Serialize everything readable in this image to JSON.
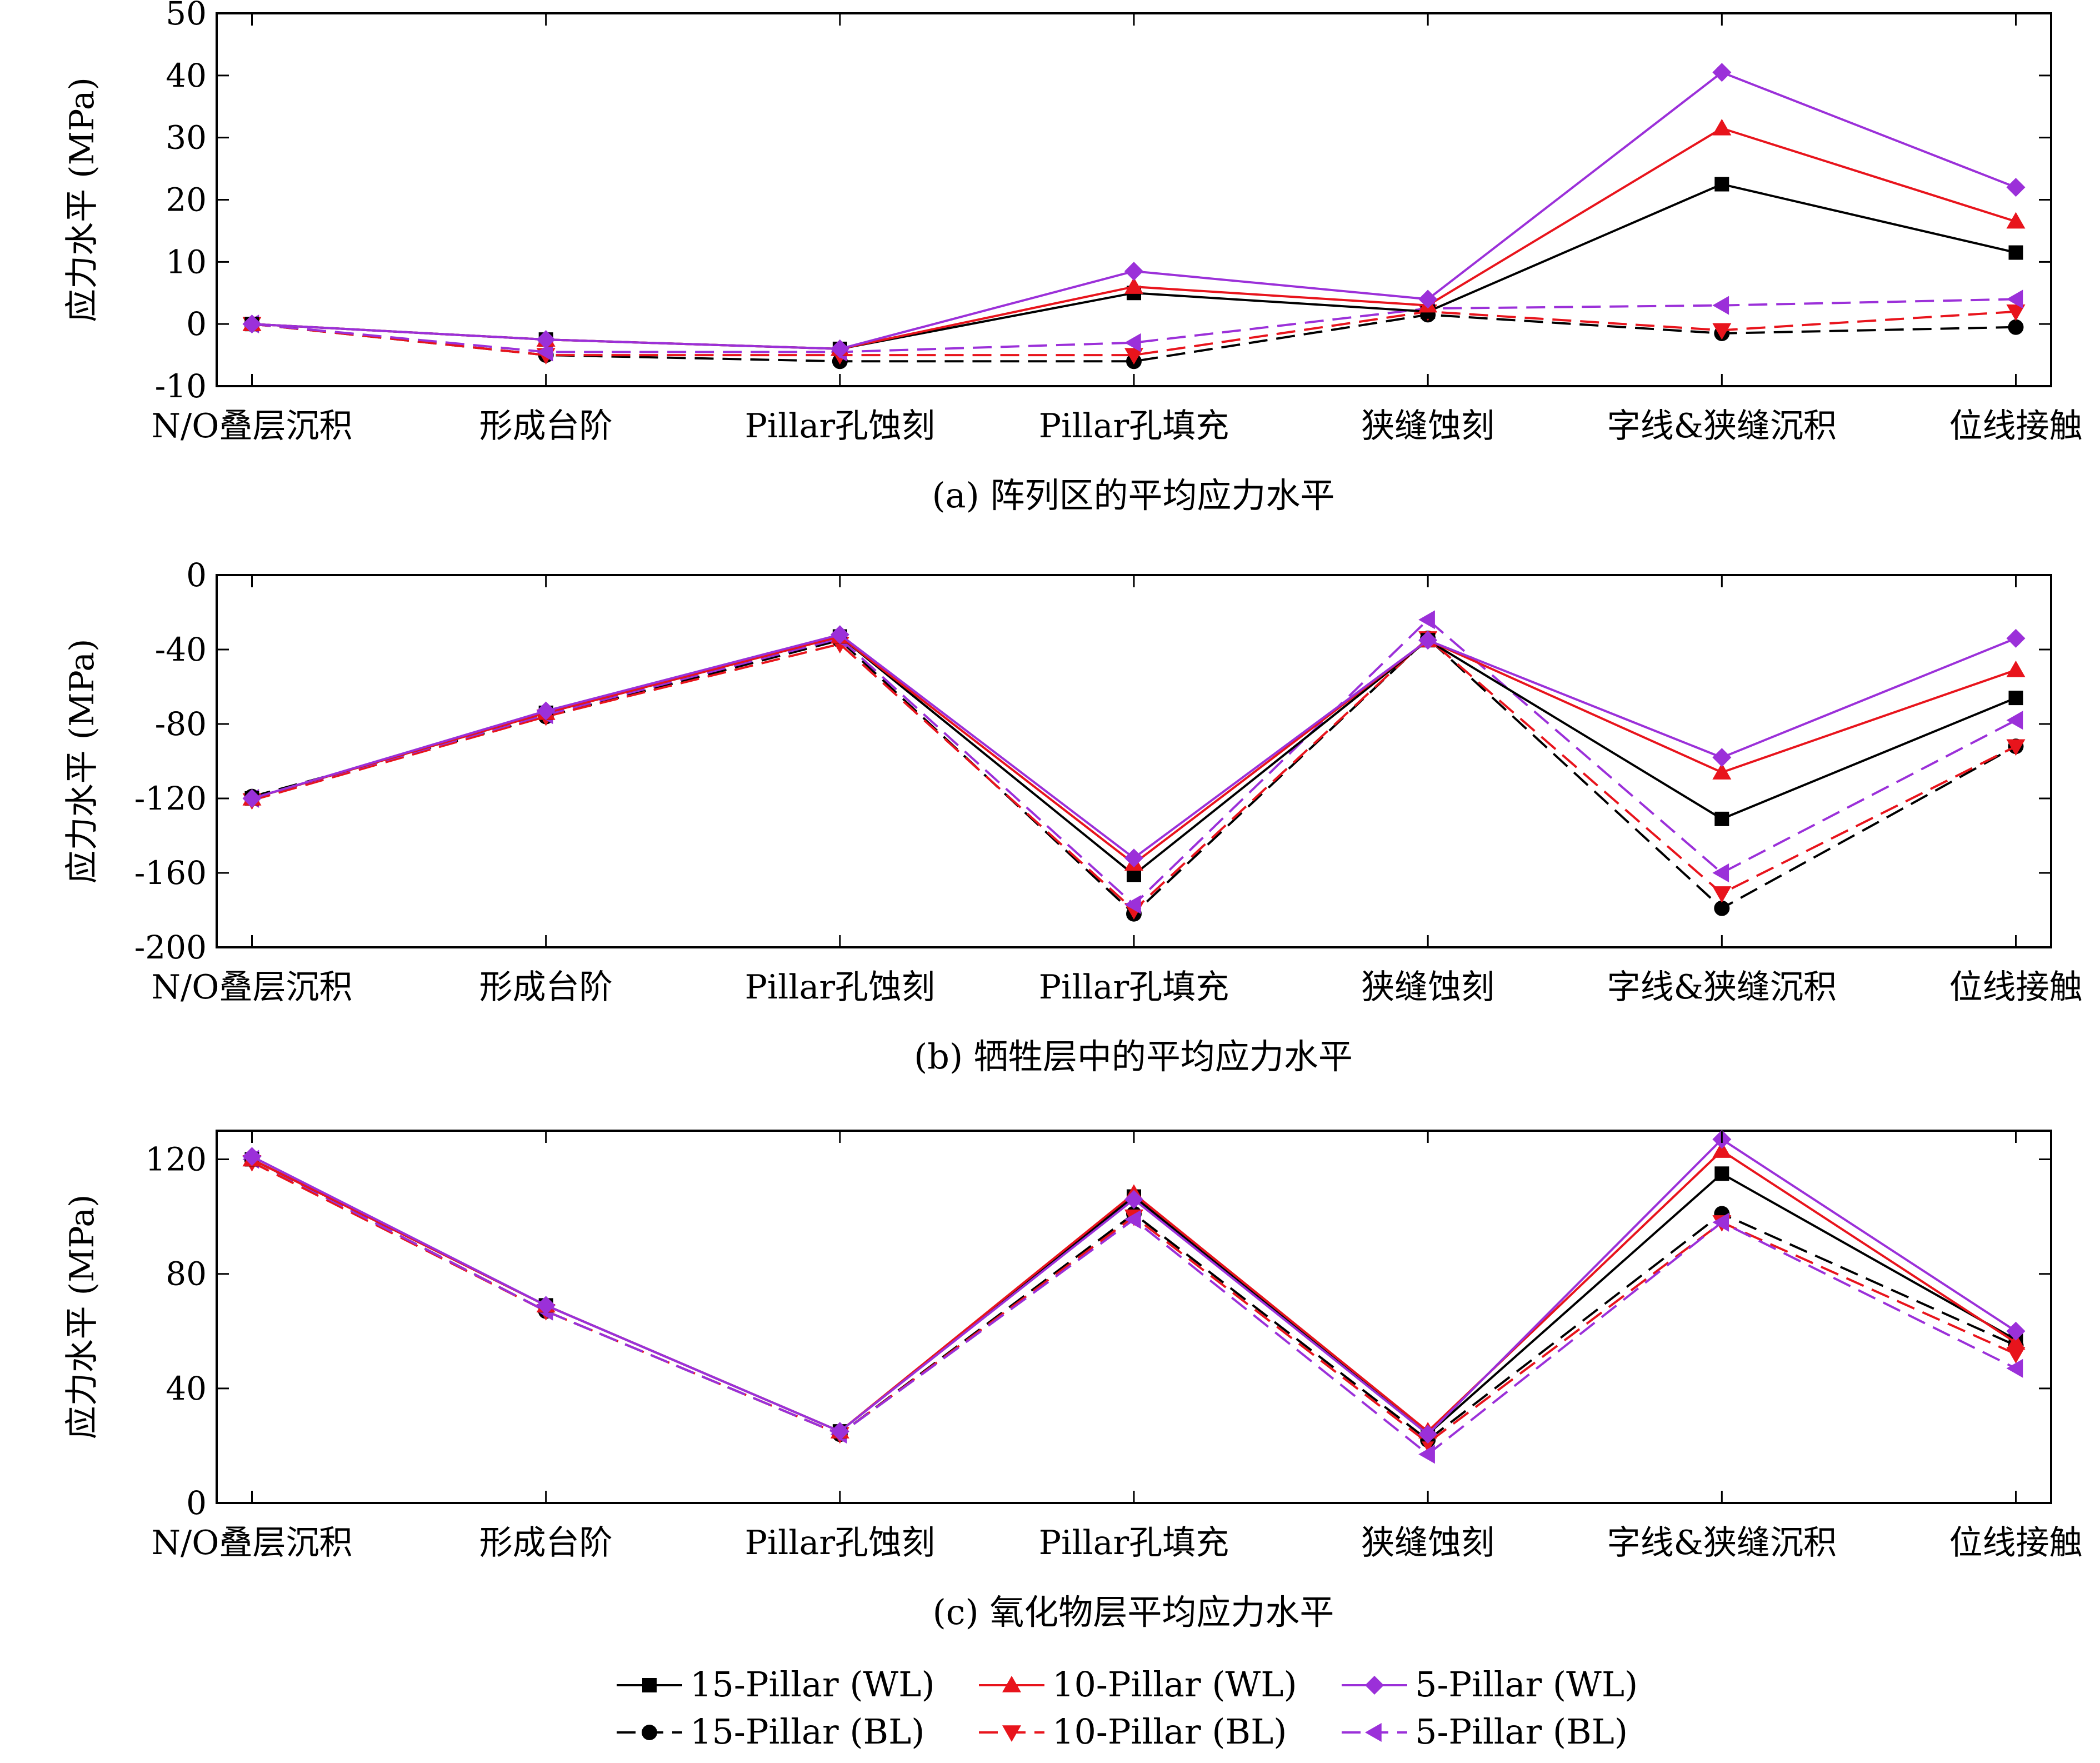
{
  "chart_data": [
    {
      "type": "line",
      "title": "(a) 阵列区的平均应力水平",
      "xlabel": "",
      "ylabel": "应力水平 (MPa)",
      "categories": [
        "N/O叠层沉积",
        "形成台阶",
        "Pillar孔蚀刻",
        "Pillar孔填充",
        "狭缝蚀刻",
        "字线&狭缝沉积",
        "位线接触"
      ],
      "ylim": [
        -10,
        50
      ],
      "yticks": [
        -10,
        0,
        10,
        20,
        30,
        40,
        50
      ],
      "series": [
        {
          "name": "15-Pillar (WL)",
          "values": [
            0,
            -2.5,
            -4,
            5,
            2,
            22.5,
            11.5
          ]
        },
        {
          "name": "10-Pillar (WL)",
          "values": [
            0,
            -2.5,
            -4,
            6,
            3,
            31.5,
            16.5
          ]
        },
        {
          "name": "5-Pillar (WL)",
          "values": [
            0,
            -2.5,
            -4,
            8.5,
            4,
            40.5,
            22
          ]
        },
        {
          "name": "15-Pillar (BL)",
          "values": [
            0,
            -5,
            -6,
            -6,
            1.5,
            -1.5,
            -0.5
          ]
        },
        {
          "name": "10-Pillar (BL)",
          "values": [
            0,
            -5,
            -5,
            -5,
            2,
            -1,
            2
          ]
        },
        {
          "name": "5-Pillar (BL)",
          "values": [
            0,
            -4.5,
            -4.5,
            -3,
            2.5,
            3,
            4
          ]
        }
      ]
    },
    {
      "type": "line",
      "title": "(b) 牺牲层中的平均应力水平",
      "xlabel": "",
      "ylabel": "应力水平 (MPa)",
      "categories": [
        "N/O叠层沉积",
        "形成台阶",
        "Pillar孔蚀刻",
        "Pillar孔填充",
        "狭缝蚀刻",
        "字线&狭缝沉积",
        "位线接触"
      ],
      "ylim": [
        -200,
        0
      ],
      "yticks": [
        -200,
        -160,
        -120,
        -80,
        -40,
        0
      ],
      "series": [
        {
          "name": "15-Pillar (WL)",
          "values": [
            -120,
            -74,
            -33,
            -161,
            -35,
            -131,
            -66
          ]
        },
        {
          "name": "10-Pillar (WL)",
          "values": [
            -120,
            -74,
            -33,
            -155,
            -35,
            -106,
            -51
          ]
        },
        {
          "name": "5-Pillar (WL)",
          "values": [
            -120,
            -73,
            -32,
            -152,
            -35,
            -98,
            -34
          ]
        },
        {
          "name": "15-Pillar (BL)",
          "values": [
            -119,
            -76,
            -35,
            -182,
            -34,
            -179,
            -92
          ]
        },
        {
          "name": "10-Pillar (BL)",
          "values": [
            -121,
            -76,
            -37,
            -180,
            -34,
            -171,
            -92
          ]
        },
        {
          "name": "5-Pillar (BL)",
          "values": [
            -120,
            -75,
            -34,
            -177,
            -24,
            -160,
            -78
          ]
        }
      ]
    },
    {
      "type": "line",
      "title": "(c) 氧化物层平均应力水平",
      "xlabel": "",
      "ylabel": "应力水平 (MPa)",
      "categories": [
        "N/O叠层沉积",
        "形成台阶",
        "Pillar孔蚀刻",
        "Pillar孔填充",
        "狭缝蚀刻",
        "字线&狭缝沉积",
        "位线接触"
      ],
      "ylim": [
        0,
        130
      ],
      "yticks": [
        0,
        40,
        80,
        120
      ],
      "series": [
        {
          "name": "15-Pillar (WL)",
          "values": [
            120,
            69,
            25,
            107,
            24,
            115,
            57
          ]
        },
        {
          "name": "10-Pillar (WL)",
          "values": [
            120,
            69,
            25,
            108,
            25,
            123,
            56
          ]
        },
        {
          "name": "5-Pillar (WL)",
          "values": [
            121,
            69,
            25,
            106,
            24,
            127,
            60
          ]
        },
        {
          "name": "15-Pillar (BL)",
          "values": [
            120,
            67,
            24,
            101,
            22,
            101,
            55
          ]
        },
        {
          "name": "10-Pillar (BL)",
          "values": [
            119,
            67,
            24,
            100,
            21,
            98,
            52
          ]
        },
        {
          "name": "5-Pillar (BL)",
          "values": [
            120,
            67,
            24,
            99,
            17,
            98,
            47
          ]
        }
      ]
    }
  ],
  "series_style": [
    {
      "name": "15-Pillar (WL)",
      "color": "#000000",
      "dashed": false,
      "marker": "square"
    },
    {
      "name": "10-Pillar (WL)",
      "color": "#e8141c",
      "dashed": false,
      "marker": "triangle-up"
    },
    {
      "name": "5-Pillar (WL)",
      "color": "#9b30d9",
      "dashed": false,
      "marker": "diamond"
    },
    {
      "name": "15-Pillar (BL)",
      "color": "#000000",
      "dashed": true,
      "marker": "circle"
    },
    {
      "name": "10-Pillar (BL)",
      "color": "#e8141c",
      "dashed": true,
      "marker": "triangle-down"
    },
    {
      "name": "5-Pillar (BL)",
      "color": "#9b30d9",
      "dashed": true,
      "marker": "triangle-left"
    }
  ],
  "legend": {
    "position": "bottom-center",
    "items": [
      "15-Pillar (WL)",
      "10-Pillar (WL)",
      "5-Pillar (WL)",
      "15-Pillar (BL)",
      "10-Pillar (BL)",
      "5-Pillar (BL)"
    ]
  }
}
